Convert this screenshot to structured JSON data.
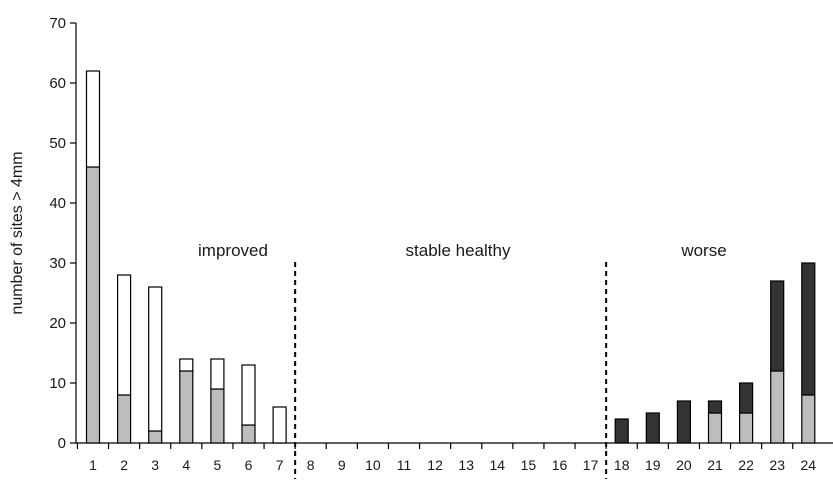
{
  "chart_data": {
    "type": "bar",
    "stacked": true,
    "title": "",
    "xlabel": "",
    "ylabel": "number of sites > 4mm",
    "ylim": [
      0,
      70
    ],
    "yticks": [
      0,
      10,
      20,
      30,
      40,
      50,
      60,
      70
    ],
    "categories": [
      "1",
      "2",
      "3",
      "4",
      "5",
      "6",
      "7",
      "8",
      "9",
      "10",
      "11",
      "12",
      "13",
      "14",
      "15",
      "16",
      "17",
      "18",
      "19",
      "20",
      "21",
      "22",
      "23",
      "24"
    ],
    "series": [
      {
        "color": "#bdbdbd",
        "values": [
          46,
          8,
          2,
          12,
          9,
          3,
          0,
          0,
          0,
          0,
          0,
          0,
          0,
          0,
          0,
          0,
          0,
          0,
          0,
          0,
          5,
          5,
          12,
          8
        ]
      },
      {
        "color": "#ffffff",
        "values": [
          16,
          20,
          24,
          2,
          5,
          10,
          6,
          0,
          0,
          0,
          0,
          0,
          0,
          0,
          0,
          0,
          0,
          0,
          0,
          0,
          0,
          0,
          0,
          0
        ]
      },
      {
        "color": "#333333",
        "values": [
          0,
          0,
          0,
          0,
          0,
          0,
          0,
          0,
          0,
          0,
          0,
          0,
          0,
          0,
          0,
          0,
          0,
          4,
          5,
          7,
          2,
          5,
          15,
          22
        ]
      }
    ],
    "regions": [
      {
        "label": "improved",
        "from": 1,
        "to": 7
      },
      {
        "label": "stable healthy",
        "from": 8,
        "to": 17
      },
      {
        "label": "worse",
        "from": 18,
        "to": 24
      }
    ],
    "dividers_after": [
      7,
      17
    ],
    "grid": false,
    "legend": "none"
  }
}
